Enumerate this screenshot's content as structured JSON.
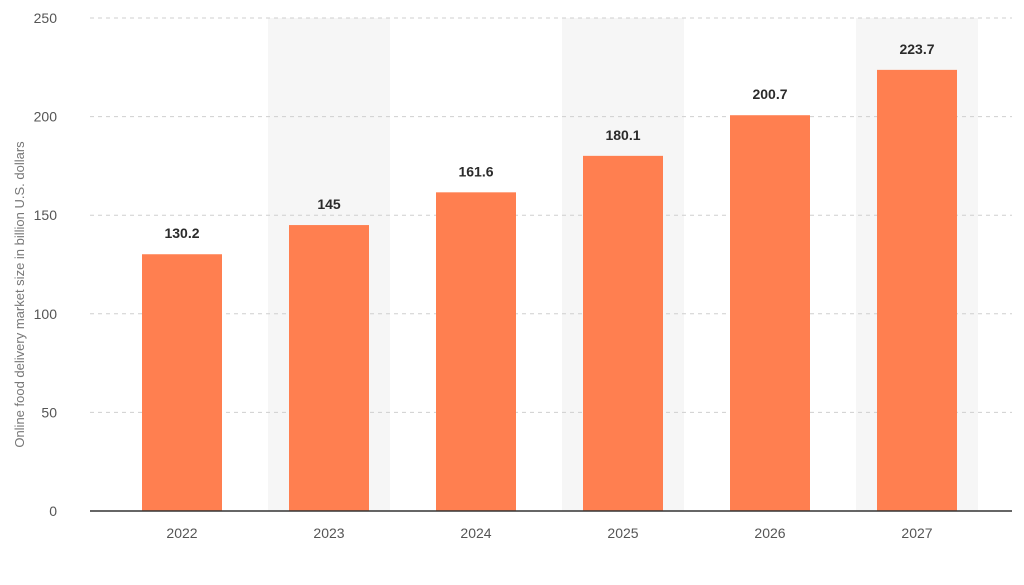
{
  "chart_data": {
    "type": "bar",
    "categories": [
      "2022",
      "2023",
      "2024",
      "2025",
      "2026",
      "2027"
    ],
    "values": [
      130.2,
      145,
      161.6,
      180.1,
      200.7,
      223.7
    ],
    "data_labels": [
      "130.2",
      "145",
      "161.6",
      "180.1",
      "200.7",
      "223.7"
    ],
    "title": "",
    "xlabel": "",
    "ylabel": "Online food delivery market size in billion U.S. dollars",
    "ylim": [
      0,
      250
    ],
    "yticks": [
      0,
      50,
      100,
      150,
      200,
      250
    ],
    "grid": true,
    "legend": "none",
    "bar_color": "#ff7f50",
    "alternating_band_color": "#f6f6f6"
  }
}
